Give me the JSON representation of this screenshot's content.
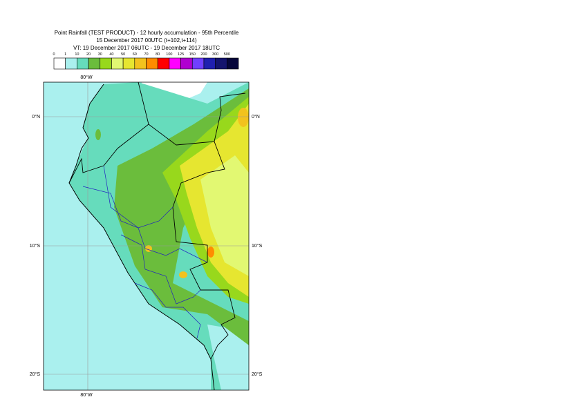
{
  "header": {
    "title_lines": [
      "Point Rainfall (TEST PRODUCT) - 12 hourly accumulation - 95th Percentile",
      "15 December 2017 00UTC (t+102,t+114)",
      "VT: 19 December 2017 06UTC - 19 December 2017 18UTC"
    ]
  },
  "legend": {
    "labels": [
      0,
      1,
      10,
      20,
      30,
      40,
      50,
      60,
      70,
      80,
      100,
      125,
      150,
      200,
      300,
      500
    ],
    "colors": [
      "#ffffff",
      "#aaf0ee",
      "#66dcbc",
      "#6bbd3c",
      "#98d81c",
      "#e2f872",
      "#e6e630",
      "#f2c21e",
      "#ff8c00",
      "#ff0000",
      "#ff00ff",
      "#b000d0",
      "#7040ff",
      "#2020b0",
      "#14146e",
      "#06063a"
    ]
  },
  "map": {
    "lon_labels": [
      "80°W"
    ],
    "lat_labels": [
      "0°N",
      "10°S",
      "20°S"
    ]
  }
}
